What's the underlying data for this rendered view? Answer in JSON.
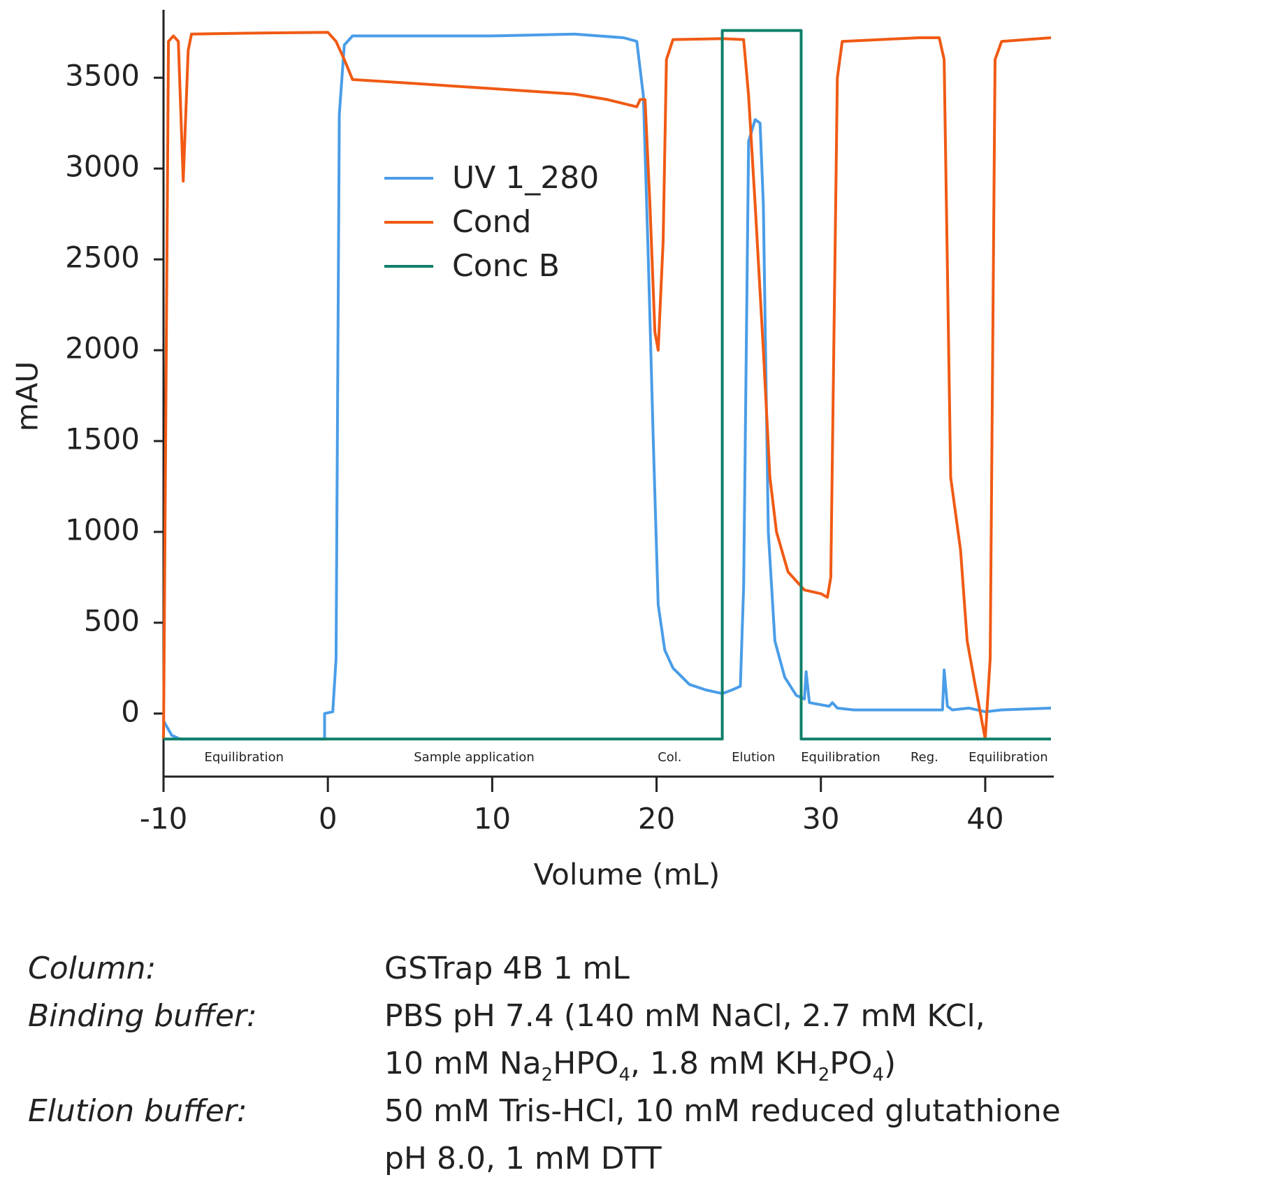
{
  "chart_data": {
    "type": "line",
    "x_label": "Volume (mL)",
    "y_label": "mAU",
    "xlim": [
      -10,
      44
    ],
    "ylim": [
      -347,
      3874
    ],
    "xticks": [
      -10,
      0,
      10,
      20,
      30,
      40
    ],
    "yticks": [
      0,
      500,
      1000,
      1500,
      2000,
      2500,
      3000,
      3500
    ],
    "legend": "upper-center",
    "series": [
      {
        "name": "UV 1_280",
        "color": "#4a9de8",
        "x": [
          -10,
          -9.5,
          -9,
          -0.2,
          -0.2,
          0.3,
          0.5,
          0.7,
          1,
          1.5,
          5,
          10,
          15,
          18,
          18.8,
          19.2,
          19.5,
          19.8,
          20.1,
          20.5,
          21,
          22,
          23,
          24,
          24.6,
          25.1,
          25.3,
          25.6,
          26,
          26.3,
          26.5,
          26.8,
          27.2,
          27.8,
          28.5,
          29,
          29.1,
          29.3,
          30.5,
          30.7,
          31,
          32,
          37.4,
          37.5,
          37.7,
          38,
          39,
          40,
          41,
          44
        ],
        "values": [
          -40,
          -120,
          -140,
          -140,
          0,
          10,
          300,
          3300,
          3680,
          3730,
          3730,
          3730,
          3740,
          3720,
          3700,
          3400,
          2500,
          1500,
          600,
          350,
          250,
          160,
          130,
          110,
          130,
          150,
          700,
          3150,
          3270,
          3250,
          2800,
          1000,
          400,
          200,
          100,
          80,
          230,
          60,
          40,
          60,
          30,
          20,
          20,
          240,
          40,
          20,
          30,
          10,
          20,
          30
        ]
      },
      {
        "name": "Cond",
        "color": "#f05a14",
        "x": [
          -10,
          -9.8,
          -9.7,
          -9.4,
          -9.1,
          -8.8,
          -8.5,
          -8.3,
          -5,
          0,
          0.5,
          1,
          1.5,
          5,
          10,
          15,
          17,
          18.8,
          19,
          19.3,
          19.6,
          19.9,
          20.1,
          20.4,
          20.6,
          21,
          24,
          25.3,
          25.6,
          26,
          26.5,
          26.9,
          27.3,
          28,
          29,
          30,
          30.4,
          30.6,
          31,
          31.3,
          36,
          37.2,
          37.5,
          37.9,
          38.5,
          38.9,
          39.4,
          40,
          40.3,
          40.6,
          41,
          44
        ],
        "values": [
          -140,
          2400,
          3700,
          3730,
          3700,
          2930,
          3650,
          3740,
          3745,
          3750,
          3700,
          3600,
          3490,
          3470,
          3440,
          3410,
          3380,
          3340,
          3380,
          3380,
          2800,
          2100,
          2000,
          2600,
          3600,
          3710,
          3715,
          3710,
          3400,
          2800,
          2000,
          1300,
          1000,
          780,
          680,
          660,
          640,
          750,
          3500,
          3700,
          3720,
          3720,
          3600,
          1300,
          900,
          400,
          150,
          -140,
          300,
          3600,
          3700,
          3720
        ]
      },
      {
        "name": "Conc B",
        "color": "#0f7f6a",
        "x": [
          -10,
          24,
          24,
          28.8,
          28.8,
          44
        ],
        "values": [
          -140,
          -140,
          3760,
          3760,
          -140,
          -140
        ]
      }
    ],
    "annotations": [
      {
        "text": "Equilibration",
        "x": -5.1
      },
      {
        "text": "Sample application",
        "x": 8.9
      },
      {
        "text": "Col.",
        "x": 20.8
      },
      {
        "text": "Elution",
        "x": 25.9
      },
      {
        "text": "Equilibration",
        "x": 31.2
      },
      {
        "text": "Reg.",
        "x": 36.3
      },
      {
        "text": "Equilibration",
        "x": 41.4
      }
    ]
  },
  "notes": [
    {
      "label": "Column:",
      "lines": [
        [
          "GSTrap 4B 1 mL"
        ]
      ]
    },
    {
      "label": "Binding buffer:",
      "lines": [
        [
          "PBS pH 7.4 (140 mM NaCl, 2.7 mM KCl,"
        ],
        [
          "10 mM Na",
          "2",
          "HPO",
          "4",
          ", 1.8 mM KH",
          "2",
          "PO",
          "4",
          ")"
        ]
      ]
    },
    {
      "label": "Elution buffer:",
      "lines": [
        [
          "50 mM Tris-HCl, 10 mM reduced glutathione"
        ],
        [
          "pH 8.0, 1 mM DTT"
        ]
      ]
    }
  ]
}
